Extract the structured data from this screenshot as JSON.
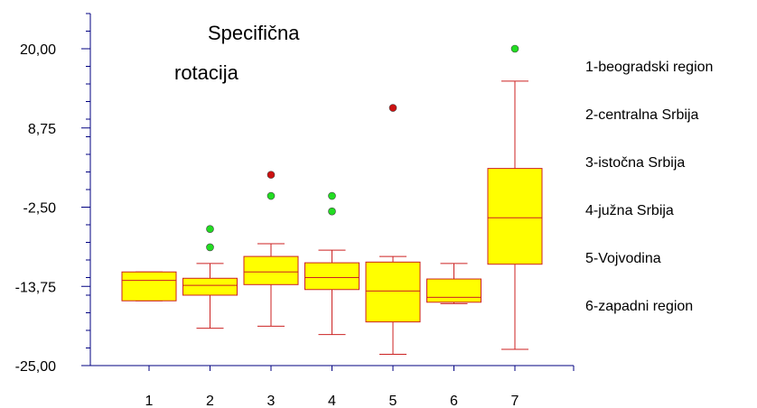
{
  "chart_data": {
    "type": "box",
    "title_lines": [
      "Specifična",
      "rotacija"
    ],
    "xlabel": "",
    "ylabel": "",
    "ylim": [
      -25,
      25
    ],
    "y_ticks": [
      20,
      8.75,
      -2.5,
      -13.75,
      -25
    ],
    "y_tick_labels": [
      "20,00",
      "8,75",
      "-2,50",
      "-13,75",
      "-25,00"
    ],
    "categories": [
      "1",
      "2",
      "3",
      "4",
      "5",
      "6",
      "7"
    ],
    "boxes": [
      {
        "category": "1",
        "min": -15.8,
        "q1": -15.8,
        "median": -12.9,
        "q3": -11.7,
        "max": -11.7,
        "outliers": []
      },
      {
        "category": "2",
        "min": -19.7,
        "q1": -15.0,
        "median": -13.6,
        "q3": -12.6,
        "max": -10.5,
        "outliers": [
          {
            "value": -8.2,
            "color": "#22dd22"
          },
          {
            "value": -5.6,
            "color": "#22dd22"
          }
        ]
      },
      {
        "category": "3",
        "min": -19.4,
        "q1": -13.5,
        "median": -11.7,
        "q3": -9.5,
        "max": -7.7,
        "outliers": [
          {
            "value": 2.1,
            "color": "#cc1111"
          },
          {
            "value": -0.9,
            "color": "#22dd22"
          }
        ]
      },
      {
        "category": "4",
        "min": -20.6,
        "q1": -14.2,
        "median": -12.5,
        "q3": -10.4,
        "max": -8.6,
        "outliers": [
          {
            "value": -0.9,
            "color": "#22dd22"
          },
          {
            "value": -3.1,
            "color": "#22dd22"
          }
        ]
      },
      {
        "category": "5",
        "min": -23.4,
        "q1": -18.8,
        "median": -14.4,
        "q3": -10.3,
        "max": -9.5,
        "outliers": [
          {
            "value": 11.6,
            "color": "#cc1111"
          }
        ]
      },
      {
        "category": "6",
        "min": -16.2,
        "q1": -16.0,
        "median": -15.3,
        "q3": -12.7,
        "max": -10.5,
        "outliers": []
      },
      {
        "category": "7",
        "min": -22.7,
        "q1": -10.6,
        "median": -4.0,
        "q3": 3.0,
        "max": 15.4,
        "outliers": [
          {
            "value": 20.0,
            "color": "#22dd22"
          }
        ]
      }
    ],
    "legend": [
      "1-beogradski region",
      "2-centralna Srbija",
      "3-istočna Srbija",
      "4-južna Srbija",
      "5-Vojvodina",
      "6-zapadni region"
    ],
    "colors": {
      "box_fill": "#ffff00",
      "box_stroke": "#cc2222",
      "axis": "#000080"
    },
    "grid": false,
    "legend_placement": "right"
  }
}
